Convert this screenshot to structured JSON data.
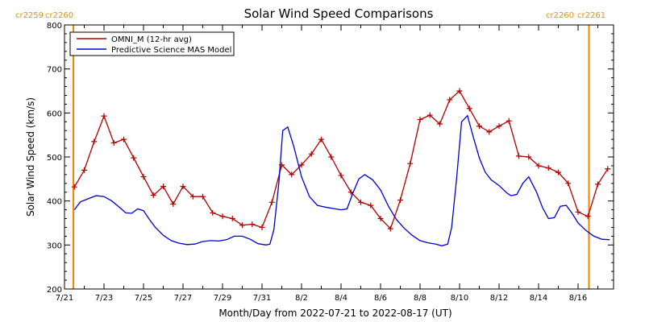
{
  "chart_data": {
    "type": "line",
    "title": "Solar Wind Speed Comparisons",
    "xlabel": "Month/Day from 2022-07-21 to 2022-08-17 (UT)",
    "ylabel": "Solar Wind Speed (km/s)",
    "ylim": [
      200,
      800
    ],
    "yticks": [
      200,
      300,
      400,
      500,
      600,
      700,
      800
    ],
    "xlim_days": [
      0,
      26.55
    ],
    "xtick_labels": [
      "7/21",
      "7/23",
      "7/25",
      "7/27",
      "7/29",
      "7/31",
      "8/2",
      "8/4",
      "8/6",
      "8/8",
      "8/10",
      "8/12",
      "8/14",
      "8/16"
    ],
    "grid": false,
    "legend_position": "top-left",
    "carrington_markers": [
      {
        "day": 0.45,
        "left_label": "cr2259",
        "right_label": "cr2260",
        "color": "#ff8000"
      },
      {
        "day": 26.55,
        "left_label": "cr2260",
        "right_label": "cr2261",
        "color": "#ff8000"
      }
    ],
    "series": [
      {
        "name": "OMNI_M (12-hr avg)",
        "color": "#b00000",
        "marker": "plus",
        "points": [
          [
            0.5,
            432
          ],
          [
            1.0,
            470
          ],
          [
            1.5,
            535
          ],
          [
            2.0,
            593
          ],
          [
            2.5,
            532
          ],
          [
            3.0,
            540
          ],
          [
            3.5,
            498
          ],
          [
            4.0,
            455
          ],
          [
            4.5,
            413
          ],
          [
            5.0,
            433
          ],
          [
            5.5,
            393
          ],
          [
            6.0,
            433
          ],
          [
            6.5,
            410
          ],
          [
            7.0,
            410
          ],
          [
            7.5,
            373
          ],
          [
            8.0,
            365
          ],
          [
            8.5,
            360
          ],
          [
            9.0,
            345
          ],
          [
            9.5,
            347
          ],
          [
            10.0,
            340
          ],
          [
            10.5,
            397
          ],
          [
            11.0,
            482
          ],
          [
            11.5,
            460
          ],
          [
            12.0,
            482
          ],
          [
            12.5,
            507
          ],
          [
            13.0,
            540
          ],
          [
            13.5,
            500
          ],
          [
            14.0,
            458
          ],
          [
            14.5,
            420
          ],
          [
            15.0,
            397
          ],
          [
            15.5,
            390
          ],
          [
            16.0,
            360
          ],
          [
            16.5,
            337
          ],
          [
            17.0,
            402
          ],
          [
            17.5,
            485
          ],
          [
            18.0,
            585
          ],
          [
            18.5,
            595
          ],
          [
            19.0,
            575
          ],
          [
            19.5,
            630
          ],
          [
            20.0,
            650
          ],
          [
            20.5,
            610
          ],
          [
            21.0,
            570
          ],
          [
            21.5,
            557
          ],
          [
            22.0,
            570
          ],
          [
            22.5,
            582
          ],
          [
            23.0,
            502
          ],
          [
            23.5,
            500
          ],
          [
            24.0,
            480
          ],
          [
            24.5,
            475
          ],
          [
            25.0,
            465
          ],
          [
            25.5,
            440
          ],
          [
            26.0,
            375
          ],
          [
            26.5,
            365
          ],
          [
            27.0,
            438
          ],
          [
            27.5,
            473
          ]
        ]
      },
      {
        "name": "Predictive Science MAS Model",
        "color": "#0000cc",
        "marker": "none",
        "points": [
          [
            0.5,
            380
          ],
          [
            0.8,
            398
          ],
          [
            1.2,
            405
          ],
          [
            1.6,
            412
          ],
          [
            2.0,
            410
          ],
          [
            2.4,
            400
          ],
          [
            2.8,
            385
          ],
          [
            3.1,
            373
          ],
          [
            3.4,
            372
          ],
          [
            3.7,
            382
          ],
          [
            4.0,
            378
          ],
          [
            4.3,
            358
          ],
          [
            4.6,
            340
          ],
          [
            5.0,
            322
          ],
          [
            5.4,
            310
          ],
          [
            5.8,
            304
          ],
          [
            6.2,
            301
          ],
          [
            6.6,
            302
          ],
          [
            7.0,
            308
          ],
          [
            7.4,
            310
          ],
          [
            7.8,
            309
          ],
          [
            8.2,
            312
          ],
          [
            8.6,
            320
          ],
          [
            9.0,
            320
          ],
          [
            9.4,
            313
          ],
          [
            9.8,
            303
          ],
          [
            10.2,
            300
          ],
          [
            10.4,
            302
          ],
          [
            10.6,
            335
          ],
          [
            10.85,
            440
          ],
          [
            11.05,
            560
          ],
          [
            11.3,
            568
          ],
          [
            11.6,
            525
          ],
          [
            12.0,
            455
          ],
          [
            12.4,
            410
          ],
          [
            12.8,
            390
          ],
          [
            13.2,
            386
          ],
          [
            13.6,
            383
          ],
          [
            14.0,
            380
          ],
          [
            14.3,
            382
          ],
          [
            14.6,
            418
          ],
          [
            14.9,
            450
          ],
          [
            15.2,
            460
          ],
          [
            15.6,
            448
          ],
          [
            16.0,
            425
          ],
          [
            16.4,
            388
          ],
          [
            16.8,
            358
          ],
          [
            17.2,
            338
          ],
          [
            17.6,
            322
          ],
          [
            18.0,
            310
          ],
          [
            18.4,
            305
          ],
          [
            18.8,
            302
          ],
          [
            19.1,
            298
          ],
          [
            19.4,
            302
          ],
          [
            19.6,
            340
          ],
          [
            19.85,
            450
          ],
          [
            20.1,
            580
          ],
          [
            20.4,
            594
          ],
          [
            20.7,
            545
          ],
          [
            21.0,
            498
          ],
          [
            21.3,
            465
          ],
          [
            21.6,
            448
          ],
          [
            22.0,
            435
          ],
          [
            22.4,
            418
          ],
          [
            22.6,
            412
          ],
          [
            22.9,
            415
          ],
          [
            23.2,
            440
          ],
          [
            23.5,
            455
          ],
          [
            23.9,
            420
          ],
          [
            24.2,
            385
          ],
          [
            24.5,
            360
          ],
          [
            24.8,
            362
          ],
          [
            25.1,
            388
          ],
          [
            25.4,
            390
          ],
          [
            25.7,
            372
          ],
          [
            26.0,
            350
          ],
          [
            26.4,
            333
          ],
          [
            26.8,
            320
          ],
          [
            27.2,
            313
          ],
          [
            27.6,
            312
          ],
          [
            28.0,
            312
          ],
          [
            28.3,
            318
          ],
          [
            28.6,
            340
          ],
          [
            28.9,
            383
          ],
          [
            29.2,
            428
          ],
          [
            29.55,
            455
          ]
        ]
      }
    ]
  }
}
